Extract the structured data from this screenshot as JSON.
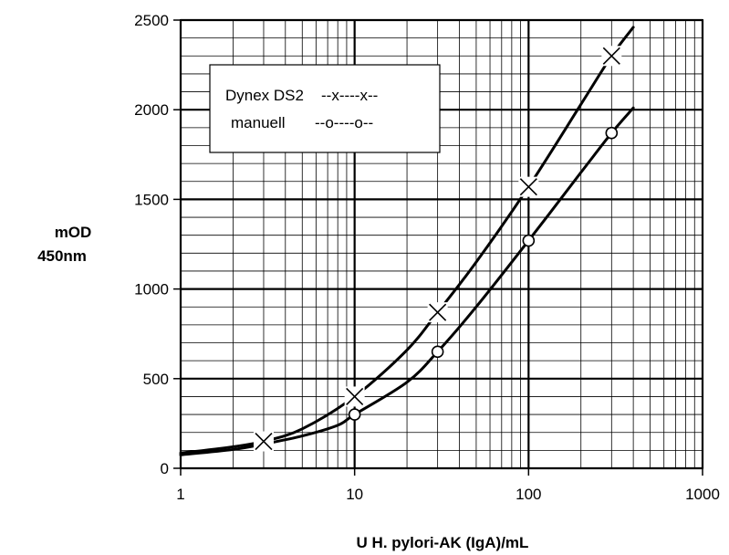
{
  "chart_data": {
    "type": "line",
    "xlabel": "U H. pylori-AK (IgA)/mL",
    "ylabel_line1": "mOD",
    "ylabel_line2": "450nm",
    "x_scale": "log",
    "xlim": [
      1,
      1000
    ],
    "ylim": [
      0,
      2500
    ],
    "x_ticks": [
      1,
      10,
      100,
      1000
    ],
    "x_tick_labels": [
      "1",
      "10",
      "100",
      "1000"
    ],
    "y_ticks": [
      0,
      500,
      1000,
      1500,
      2000,
      2500
    ],
    "y_tick_labels": [
      "0",
      "500",
      "1000",
      "1500",
      "2000",
      "2500"
    ],
    "grid": true,
    "legend": {
      "placement": "top-left",
      "entries": [
        {
          "label": "Dynex DS2",
          "style": "--x----x--"
        },
        {
          "label": "manuell",
          "style": "--o----o--"
        }
      ]
    },
    "series": [
      {
        "name": "Dynex DS2",
        "marker": "x",
        "points": [
          {
            "x": 3,
            "y": 150
          },
          {
            "x": 10,
            "y": 400
          },
          {
            "x": 30,
            "y": 870
          },
          {
            "x": 100,
            "y": 1570
          },
          {
            "x": 300,
            "y": 2300
          }
        ],
        "curve": [
          {
            "x": 1,
            "y": 85
          },
          {
            "x": 2,
            "y": 120
          },
          {
            "x": 3,
            "y": 150
          },
          {
            "x": 5,
            "y": 220
          },
          {
            "x": 10,
            "y": 400
          },
          {
            "x": 20,
            "y": 660
          },
          {
            "x": 30,
            "y": 870
          },
          {
            "x": 50,
            "y": 1150
          },
          {
            "x": 100,
            "y": 1570
          },
          {
            "x": 200,
            "y": 2030
          },
          {
            "x": 300,
            "y": 2300
          },
          {
            "x": 400,
            "y": 2460
          }
        ]
      },
      {
        "name": "manuell",
        "marker": "o",
        "points": [
          {
            "x": 10,
            "y": 300
          },
          {
            "x": 30,
            "y": 650
          },
          {
            "x": 100,
            "y": 1270
          },
          {
            "x": 300,
            "y": 1870
          }
        ],
        "curve": [
          {
            "x": 1,
            "y": 75
          },
          {
            "x": 2,
            "y": 105
          },
          {
            "x": 3,
            "y": 135
          },
          {
            "x": 5,
            "y": 180
          },
          {
            "x": 8,
            "y": 240
          },
          {
            "x": 10,
            "y": 300
          },
          {
            "x": 20,
            "y": 480
          },
          {
            "x": 30,
            "y": 650
          },
          {
            "x": 50,
            "y": 900
          },
          {
            "x": 100,
            "y": 1270
          },
          {
            "x": 200,
            "y": 1650
          },
          {
            "x": 300,
            "y": 1870
          },
          {
            "x": 400,
            "y": 2010
          }
        ]
      }
    ]
  }
}
